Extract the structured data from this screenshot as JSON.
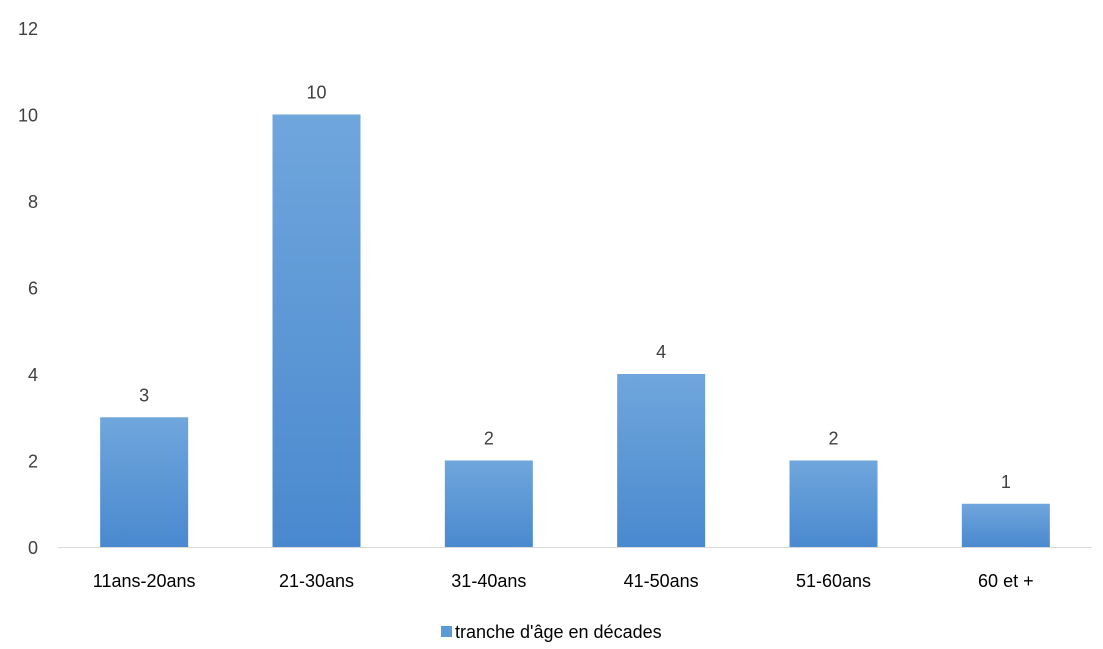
{
  "chart_data": {
    "type": "bar",
    "categories": [
      "11ans-20ans",
      "21-30ans",
      "31-40ans",
      "41-50ans",
      "51-60ans",
      "60 et +"
    ],
    "series": [
      {
        "name": "tranche d'âge en décades",
        "values": [
          3,
          10,
          2,
          4,
          2,
          1
        ],
        "color": "#5B9BD5"
      }
    ],
    "ylim": [
      0,
      12
    ],
    "yticks": [
      0,
      2,
      4,
      6,
      8,
      10,
      12
    ],
    "grid": false,
    "legend_position": "bottom",
    "data_labels": true,
    "colors": {
      "bar_top": "#6FA6DC",
      "bar_bottom": "#4A89CF",
      "text": "#404040",
      "axis": "#D9D9D9"
    }
  }
}
